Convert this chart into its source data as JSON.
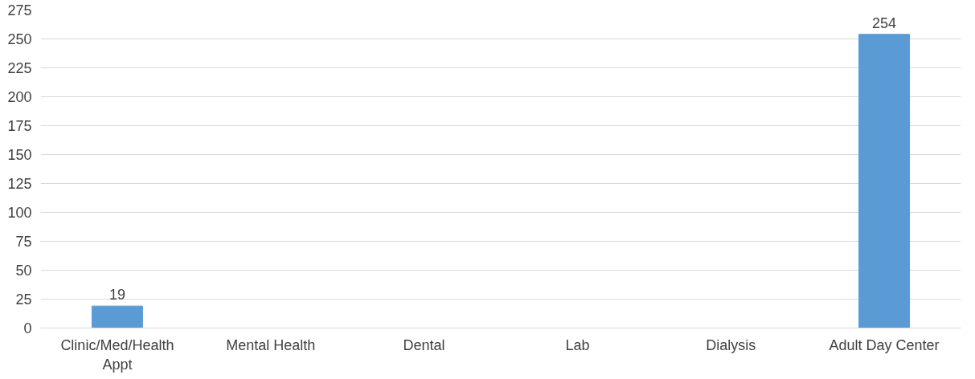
{
  "chart_data": {
    "type": "bar",
    "categories": [
      "Clinic/Med/Health Appt",
      "Mental Health",
      "Dental",
      "Lab",
      "Dialysis",
      "Adult Day Center"
    ],
    "values": [
      19,
      0,
      0,
      0,
      0,
      254
    ],
    "value_labels": [
      "19",
      null,
      null,
      null,
      null,
      "254"
    ],
    "color": "#5b9bd5",
    "ylim": [
      0,
      275
    ],
    "yticks": [
      0,
      25,
      50,
      75,
      100,
      125,
      150,
      175,
      200,
      225,
      250,
      275
    ],
    "grid": "y"
  }
}
